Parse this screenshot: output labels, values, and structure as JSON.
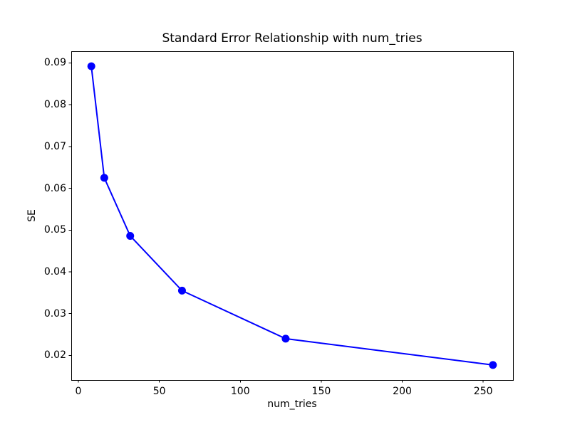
{
  "figure": {
    "background": "#ffffff",
    "text_color": "#000000",
    "spine_color": "#000000"
  },
  "chart_data": {
    "type": "line",
    "title": "Standard Error Relationship with num_tries",
    "xlabel": "num_tries",
    "ylabel": "SE",
    "x": [
      8,
      16,
      32,
      64,
      128,
      256
    ],
    "y": [
      0.0892,
      0.0625,
      0.0486,
      0.0355,
      0.024,
      0.0177
    ],
    "line_color": "#0000ff",
    "marker": "circle",
    "marker_color": "#0000ff",
    "grid": false,
    "legend": null,
    "xlim": [
      -4.4,
      268.4
    ],
    "ylim": [
      0.0141,
      0.0928
    ],
    "xticks": {
      "values": [
        0,
        50,
        100,
        150,
        200,
        250
      ],
      "labels": [
        "0",
        "50",
        "100",
        "150",
        "200",
        "250"
      ]
    },
    "yticks": {
      "values": [
        0.02,
        0.03,
        0.04,
        0.05,
        0.06,
        0.07,
        0.08,
        0.09
      ],
      "labels": [
        "0.02",
        "0.03",
        "0.04",
        "0.05",
        "0.06",
        "0.07",
        "0.08",
        "0.09"
      ]
    }
  }
}
